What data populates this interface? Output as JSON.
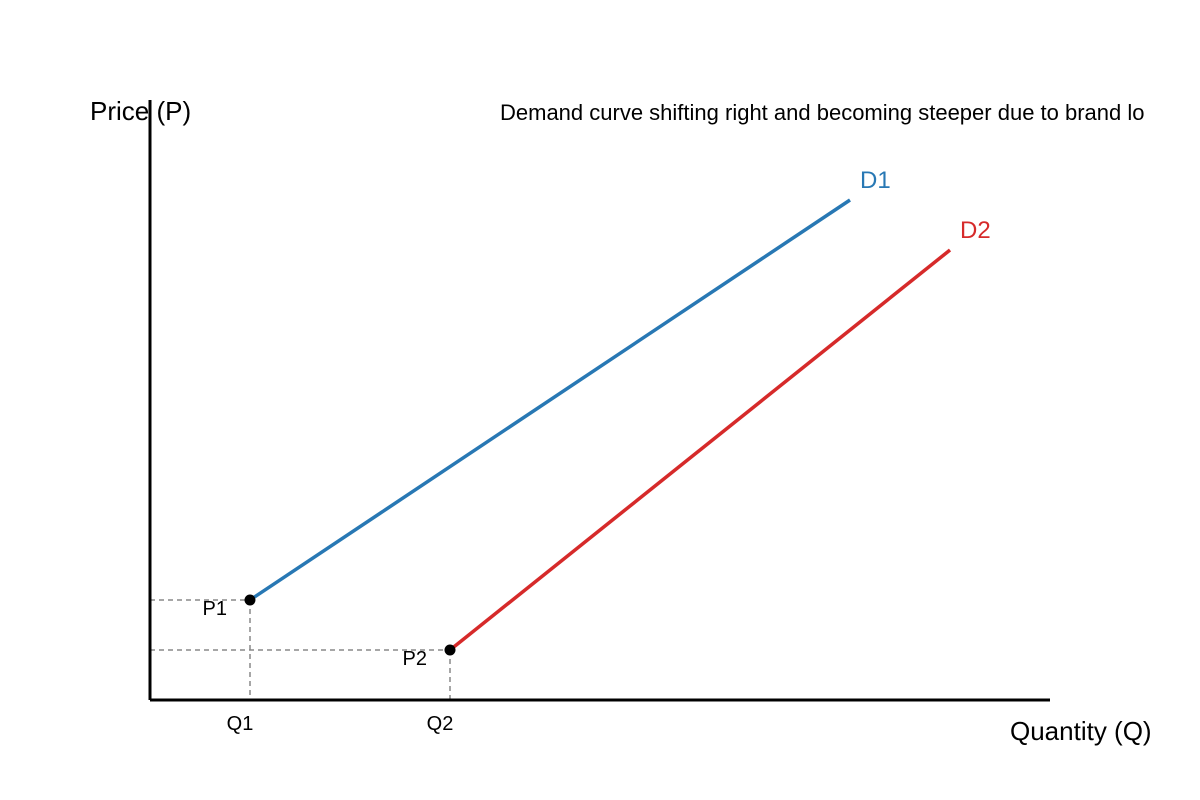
{
  "chart_data": {
    "type": "line",
    "subtitle": "Demand curve shifting right and becoming steeper due to brand lo",
    "xlabel": "Quantity (Q)",
    "ylabel": "Price (P)",
    "x_ticks": [
      {
        "label": "Q1",
        "value": 1
      },
      {
        "label": "Q2",
        "value": 3
      }
    ],
    "y_ticks": [
      {
        "label": "P1",
        "value": 1
      },
      {
        "label": "P2",
        "value": 0.5
      }
    ],
    "series": [
      {
        "name": "D1",
        "color": "#2878b4",
        "points": [
          [
            1,
            1
          ],
          [
            7,
            5
          ]
        ]
      },
      {
        "name": "D2",
        "color": "#d62a2a",
        "points": [
          [
            3,
            0.5
          ],
          [
            8,
            4.5
          ]
        ]
      }
    ],
    "points": [
      {
        "x": 1,
        "y": 1
      },
      {
        "x": 3,
        "y": 0.5
      }
    ],
    "xlim": [
      0,
      9
    ],
    "ylim": [
      0,
      6
    ],
    "grid": false,
    "axis_color": "#000000",
    "guide_color": "#888888"
  }
}
